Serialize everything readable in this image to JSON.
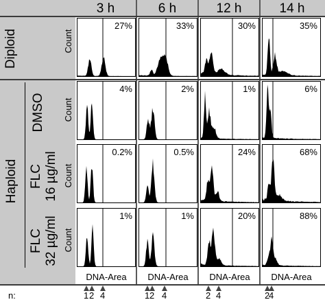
{
  "columns": [
    "3 h",
    "6 h",
    "12 h",
    "14 h"
  ],
  "groups": {
    "diploid": "Diploid",
    "haploid": "Haploid"
  },
  "conditions": [
    {
      "line1": "DMSO",
      "line2": ""
    },
    {
      "line1": "FLC",
      "line2": "16 µg/ml"
    },
    {
      "line1": "FLC",
      "line2": "32 µg/ml"
    }
  ],
  "y_label": "Count",
  "x_label": "DNA-Area",
  "n_label": "n:",
  "percentages": [
    [
      "27%",
      "33%",
      "30%",
      "35%"
    ],
    [
      "4%",
      "2%",
      "1%",
      "6%"
    ],
    [
      "0.2%",
      "0.5%",
      "24%",
      "68%"
    ],
    [
      "1%",
      "1%",
      "20%",
      "88%"
    ]
  ],
  "ploidy_markers": [
    {
      "column": "3 h",
      "labels": [
        "1",
        "2",
        "4"
      ]
    },
    {
      "column": "6 h",
      "labels": [
        "1",
        "2",
        "4"
      ]
    },
    {
      "column": "12 h",
      "labels": [
        "2",
        "4"
      ]
    },
    {
      "column": "14 h",
      "labels": [
        "2",
        "4"
      ]
    }
  ],
  "colors": {
    "panel_header_band": "#c9c9c9",
    "histogram_fill": "#000000",
    "marker_arrow": "#444444"
  }
}
